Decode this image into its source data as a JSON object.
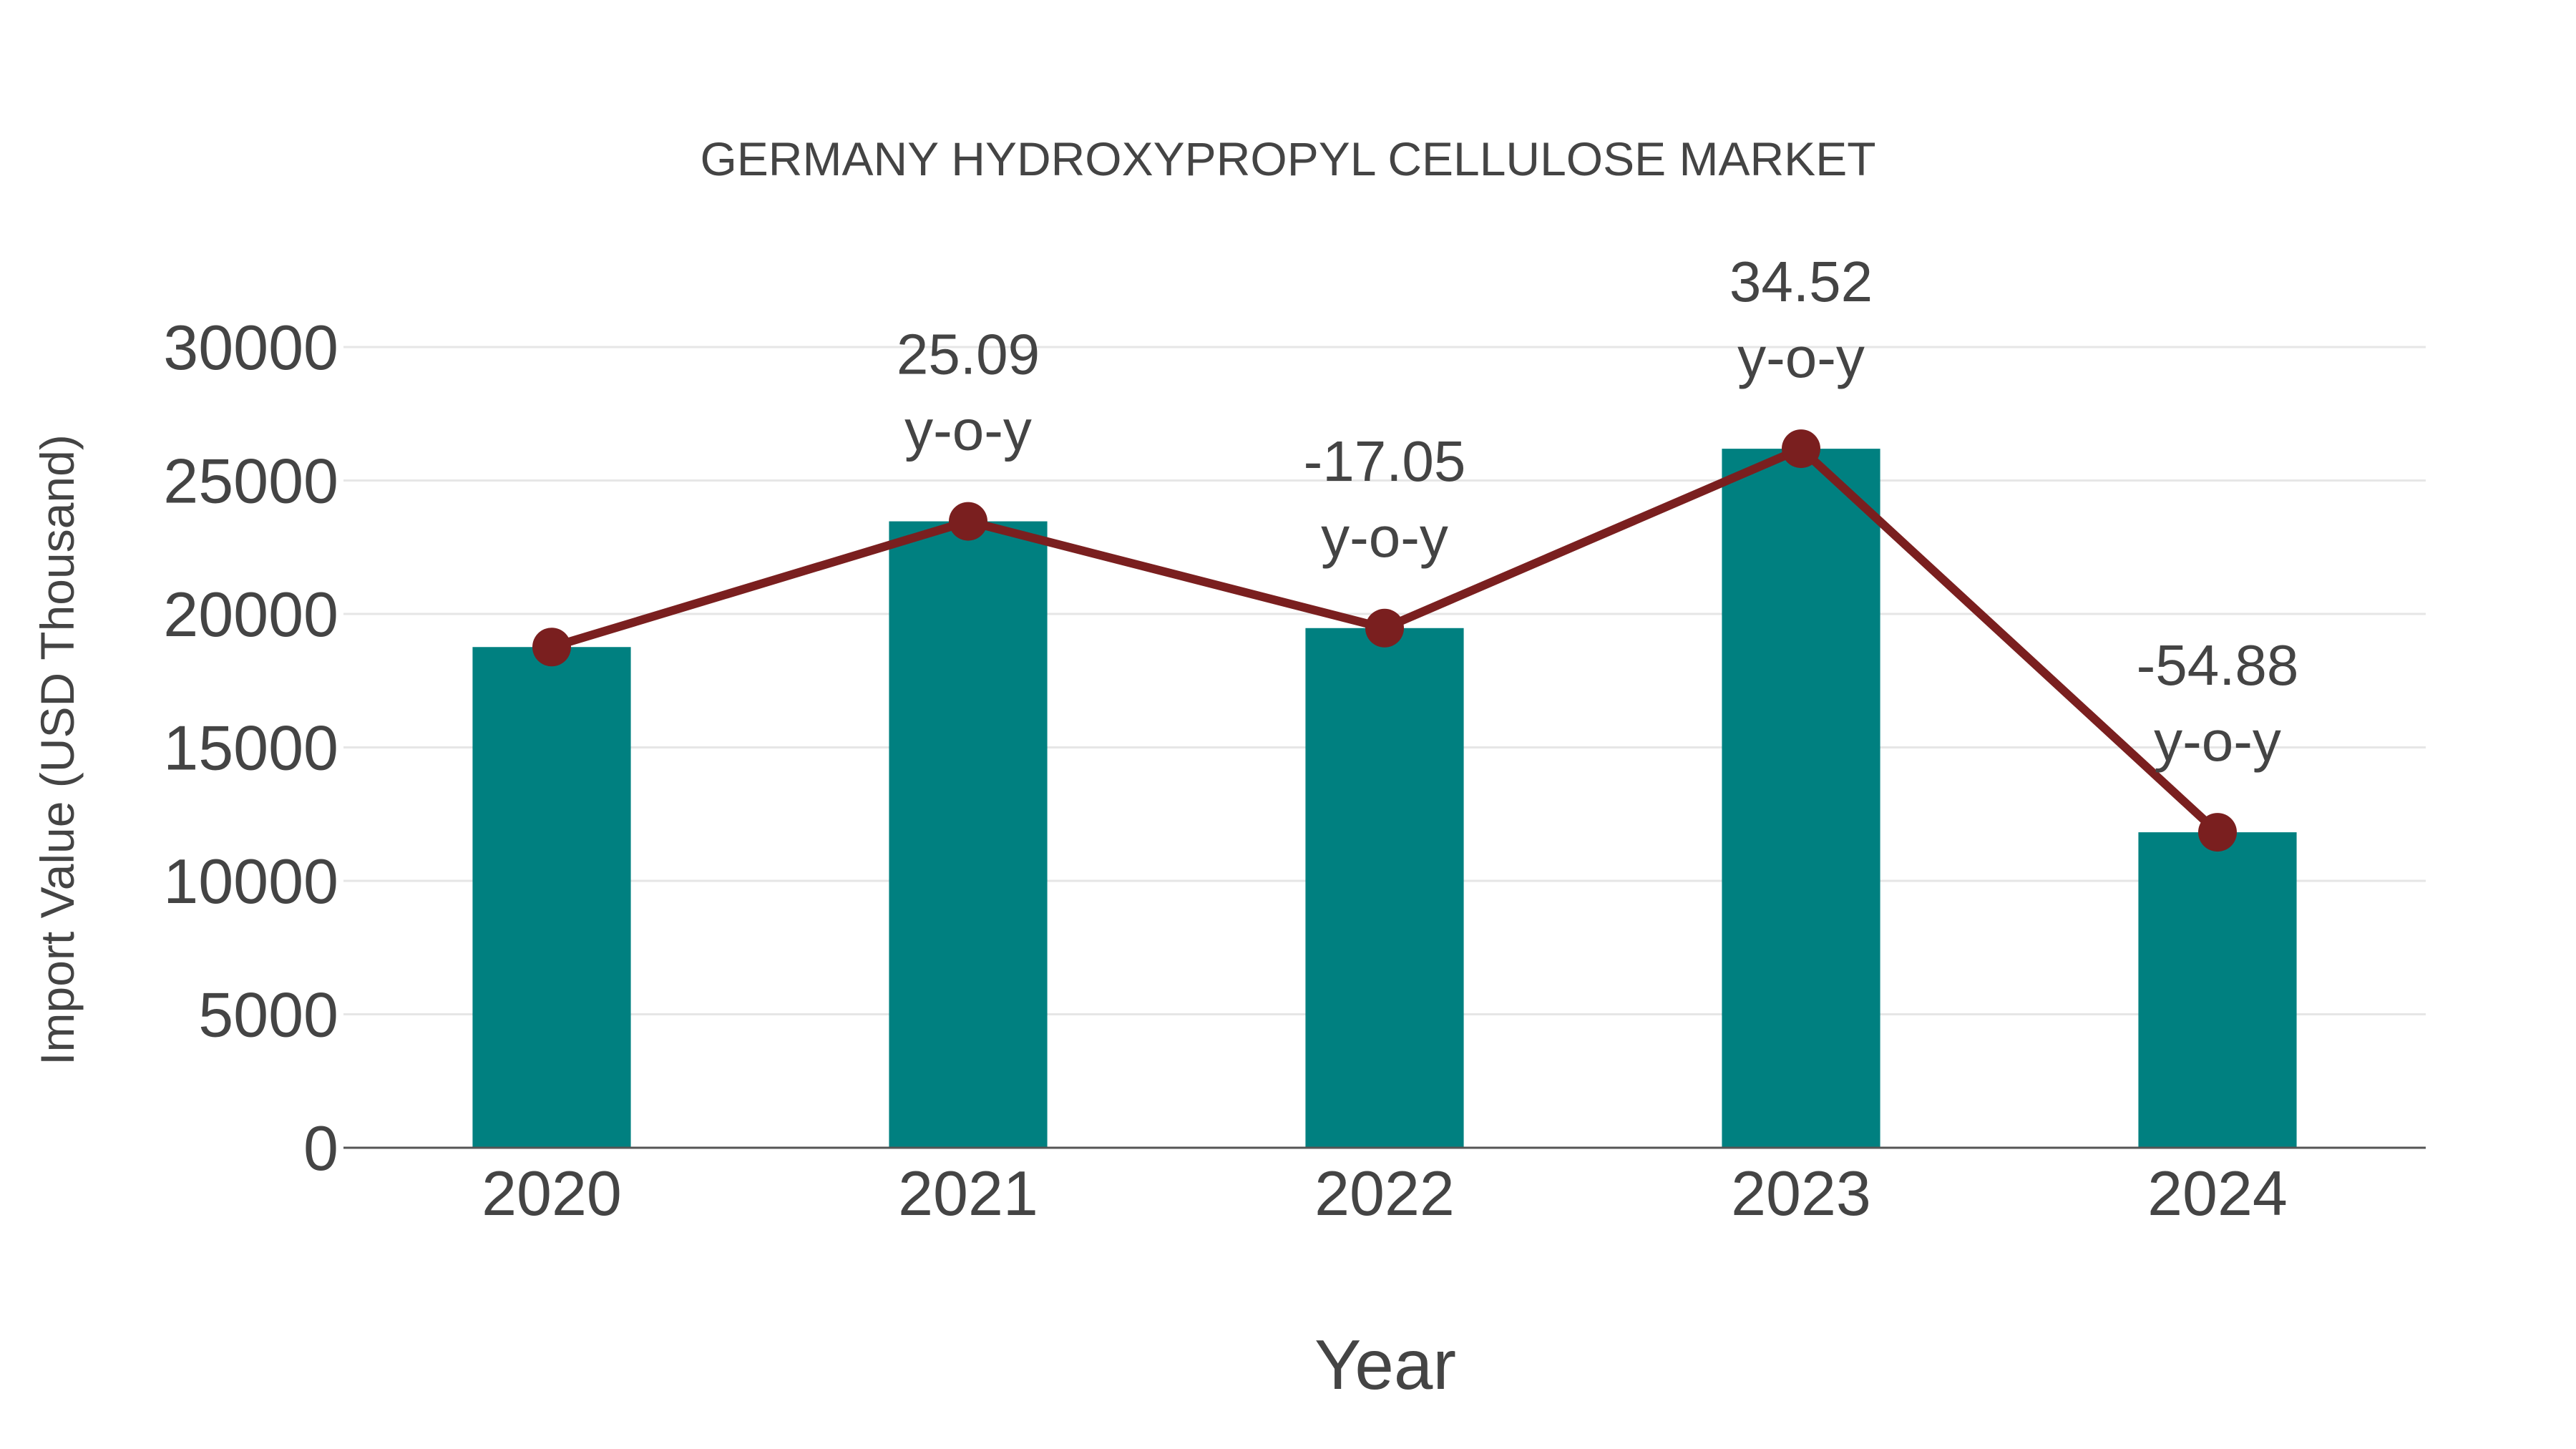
{
  "chart_data": {
    "type": "bar",
    "title": "GERMANY HYDROXYPROPYL CELLULOSE MARKET",
    "xlabel": "Year",
    "ylabel": "Import Value (USD Thousand)",
    "categories": [
      "2020",
      "2021",
      "2022",
      "2023",
      "2024"
    ],
    "series": [
      {
        "name": "Import Value",
        "type": "bar",
        "color": "#008080",
        "values": [
          18760,
          23470,
          19470,
          26190,
          11820
        ]
      },
      {
        "name": "Import Value trend",
        "type": "line",
        "color": "#7a1f1f",
        "values": [
          18760,
          23470,
          19470,
          26190,
          11820
        ]
      }
    ],
    "annotations": [
      {
        "category": "2021",
        "value": "25.09",
        "suffix": "y-o-y"
      },
      {
        "category": "2022",
        "value": "-17.05",
        "suffix": "y-o-y"
      },
      {
        "category": "2023",
        "value": "34.52",
        "suffix": "y-o-y"
      },
      {
        "category": "2024",
        "value": "-54.88",
        "suffix": "y-o-y"
      }
    ],
    "yticks": [
      0,
      5000,
      10000,
      15000,
      20000,
      25000,
      30000
    ],
    "ylim": [
      0,
      30000
    ],
    "grid": true,
    "legend": "none"
  },
  "colors": {
    "bar": "#008080",
    "line": "#7a1f1f",
    "text": "#444444",
    "grid": "#e6e6e6",
    "axis": "#555555"
  }
}
